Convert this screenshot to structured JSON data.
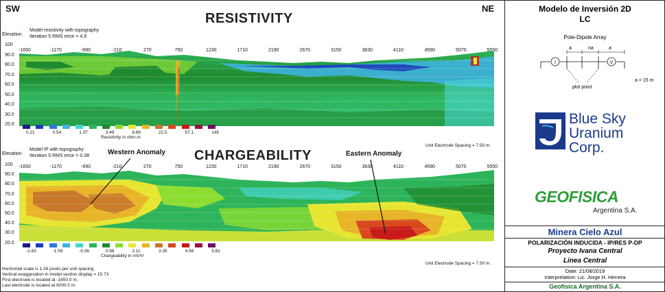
{
  "left": {
    "dir_left": "SW",
    "dir_right": "NE",
    "resistivity": {
      "title": "RESISTIVITY",
      "subtitle1": "Model resistivity with topography",
      "subtitle2": "Iteration 5 RMS error = 4.9",
      "elevation_label": "Elevation",
      "y_ticks": [
        "100",
        "90.0",
        "80.0",
        "70.0",
        "60.0",
        "50.0",
        "40.0",
        "30.0",
        "20.0"
      ],
      "x_ticks": [
        "-1650",
        "-1170",
        "-690",
        "-210",
        "270",
        "750",
        "1230",
        "1710",
        "2190",
        "2670",
        "3150",
        "3630",
        "4110",
        "4590",
        "5070",
        "5550"
      ],
      "legend_values": [
        "0.21",
        "0.54",
        "1.37",
        "3.49",
        "8.86",
        "22.5",
        "57.1",
        "145"
      ],
      "legend_title": "Resistivity in ohm.m",
      "legend_colors": [
        "#1a1a8c",
        "#1d3fb8",
        "#2a78d8",
        "#3fb4e8",
        "#46d6d0",
        "#2db45a",
        "#1f8a2e",
        "#8cdc32",
        "#e6e632",
        "#e8b428",
        "#c8782a",
        "#d84a1e",
        "#c81a1a",
        "#9a1040",
        "#6a1060"
      ],
      "spacing": "Unit Electrode Spacing = 7.50 m."
    },
    "chargeability": {
      "title": "CHARGEABILITY",
      "subtitle1": "Model IP with topography",
      "subtitle2": "Iteration 5 RMS error = 0.38",
      "elevation_label": "Elevation",
      "y_ticks": [
        "100",
        "90.0",
        "80.0",
        "70.0",
        "60.0",
        "50.0",
        "40.0",
        "30.0",
        "20.0"
      ],
      "x_ticks": [
        "-1650",
        "-1170",
        "-690",
        "-210",
        "270",
        "750",
        "1230",
        "1710",
        "2190",
        "2670",
        "3150",
        "3630",
        "4110",
        "4590",
        "5070",
        "5550"
      ],
      "legend_values": [
        "-2.83",
        "-1.59",
        "-0.36",
        "0.88",
        "2.11",
        "3.35",
        "4.58",
        "5.81"
      ],
      "legend_title": "Chargeability in mV/V",
      "legend_colors": [
        "#1a1a8c",
        "#1d3fb8",
        "#2a78d8",
        "#3fb4e8",
        "#46d6d0",
        "#2db45a",
        "#1f8a2e",
        "#8cdc32",
        "#e6e632",
        "#e8b428",
        "#c8782a",
        "#d84a1e",
        "#c81a1a",
        "#9a1040",
        "#6a1060"
      ],
      "spacing": "Unit Electrode Spacing = 7.50 m.",
      "western_anomaly": "Western Anomaly",
      "eastern_anomaly": "Eastern Anomaly"
    },
    "footnotes": [
      "Horizontal scale is 1.26 pixels per unit spacing",
      "Vertical exaggeration in model section display = 15.73",
      "First electrode is located at -1650.0  m.",
      "Last electrode is located at 6000.0 m."
    ]
  },
  "right": {
    "title_line1": "Modelo de Inversión 2D",
    "title_line2": "LC",
    "array_title": "Pole-Dipole Array",
    "array_a1": "a",
    "array_na": "na",
    "array_a2": "a",
    "plot_point": "plot point",
    "a_value": "a = 15 m",
    "company1_line1": "Blue Sky",
    "company1_line2": "Uranium",
    "company1_line3": "Corp.",
    "company2_name": "GEOFISICA",
    "company2_sub": "Argentina S.A.",
    "client": "Minera Cielo Azul",
    "method": "POLARIZACIÓN INDUCIDA - IP/RES  P-DP",
    "project": "Proyecto Ivana Central",
    "line": "Linea Central",
    "date": "Date: 21/08/2019",
    "interpretation": "Interpretation: Lic. Jorge H. Herrera",
    "footer_company": "Geofisica Argentina S.A."
  }
}
